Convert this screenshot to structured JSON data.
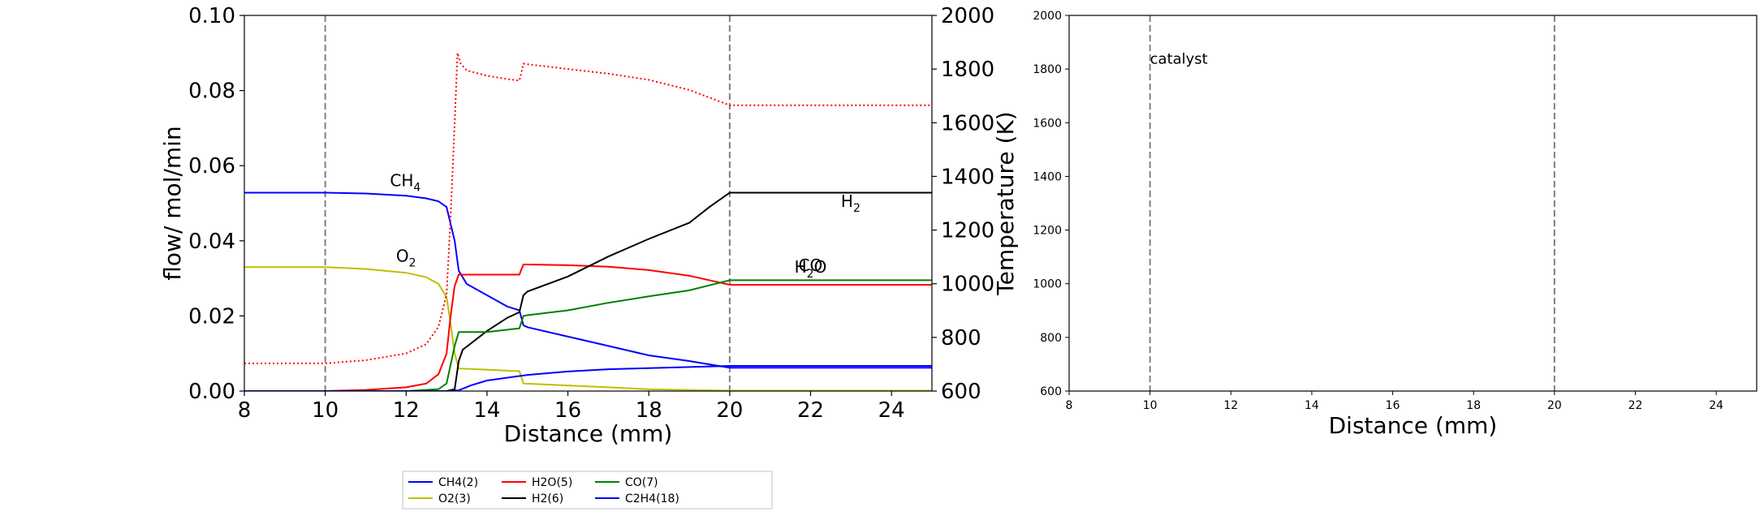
{
  "chart_data": [
    {
      "type": "line",
      "xlabel": "Distance (mm)",
      "ylabel": "flow/ mol/min",
      "y2label": "Temperature (K)",
      "xlim": [
        8,
        25
      ],
      "ylim": [
        0,
        0.1
      ],
      "y2lim": [
        600,
        2000
      ],
      "xticks": [
        "8",
        "10",
        "12",
        "14",
        "16",
        "18",
        "20",
        "22",
        "24"
      ],
      "yticks": [
        "0.00",
        "0.02",
        "0.04",
        "0.06",
        "0.08",
        "0.10"
      ],
      "y2ticks": [
        "600",
        "800",
        "1000",
        "1200",
        "1400",
        "1600",
        "1800",
        "2000"
      ],
      "grid": false,
      "legend_position": "bottom-center",
      "vlines": [
        10,
        20
      ],
      "series": [
        {
          "name": "CH4(2)",
          "color": "#0000ff",
          "style": "solid",
          "x": [
            8,
            10,
            11,
            12,
            12.5,
            12.8,
            13.0,
            13.1,
            13.2,
            13.3,
            13.5,
            14,
            14.5,
            14.8,
            14.9,
            15,
            16,
            17,
            18,
            19,
            20,
            25
          ],
          "y": [
            0.0528,
            0.0528,
            0.0526,
            0.052,
            0.0513,
            0.0505,
            0.049,
            0.0445,
            0.04,
            0.032,
            0.0285,
            0.0255,
            0.0225,
            0.0215,
            0.0175,
            0.017,
            0.0145,
            0.012,
            0.0095,
            0.008,
            0.0062,
            0.0062
          ]
        },
        {
          "name": "O2(3)",
          "color": "#bfbf00",
          "style": "solid",
          "x": [
            8,
            10,
            11,
            12,
            12.5,
            12.8,
            13.0,
            13.1,
            13.2,
            13.3,
            14,
            14.8,
            14.9,
            16,
            18,
            20,
            25
          ],
          "y": [
            0.033,
            0.033,
            0.0325,
            0.0315,
            0.0303,
            0.0285,
            0.025,
            0.018,
            0.01,
            0.006,
            0.0057,
            0.0053,
            0.002,
            0.0015,
            0.0005,
            0.0001,
            0.0001
          ]
        },
        {
          "name": "H2O(5)",
          "color": "#ff0000",
          "style": "solid",
          "x": [
            8,
            10,
            11,
            12,
            12.5,
            12.8,
            13.0,
            13.1,
            13.2,
            13.3,
            14,
            14.8,
            14.9,
            15,
            16,
            17,
            18,
            19,
            20,
            25
          ],
          "y": [
            0,
            0,
            0.0003,
            0.001,
            0.002,
            0.0045,
            0.01,
            0.02,
            0.028,
            0.031,
            0.031,
            0.031,
            0.0337,
            0.0337,
            0.0335,
            0.0331,
            0.0322,
            0.0307,
            0.0283,
            0.0283
          ]
        },
        {
          "name": "H2(6)",
          "color": "#000000",
          "style": "solid",
          "x": [
            8,
            12,
            13.0,
            13.2,
            13.3,
            13.4,
            14,
            14.5,
            14.8,
            14.9,
            15,
            16,
            17,
            18,
            19,
            19.5,
            20,
            25
          ],
          "y": [
            0,
            0,
            0,
            0.0005,
            0.008,
            0.011,
            0.016,
            0.0195,
            0.021,
            0.0255,
            0.0265,
            0.0305,
            0.0358,
            0.0405,
            0.0448,
            0.049,
            0.0528,
            0.0528
          ]
        },
        {
          "name": "CO(7)",
          "color": "#008000",
          "style": "solid",
          "x": [
            8,
            12,
            12.8,
            13.0,
            13.1,
            13.2,
            13.3,
            14,
            14.8,
            14.9,
            15,
            16,
            17,
            18,
            19,
            20,
            25
          ],
          "y": [
            0,
            0,
            0.0005,
            0.002,
            0.007,
            0.012,
            0.0157,
            0.0157,
            0.0167,
            0.02,
            0.0202,
            0.0215,
            0.0235,
            0.0252,
            0.0268,
            0.0295,
            0.0295
          ]
        },
        {
          "name": "C2H4(18)",
          "color": "#0000ff",
          "style": "solid",
          "x": [
            8,
            13.0,
            13.3,
            13.6,
            14,
            14.8,
            15,
            16,
            17,
            18,
            19,
            20,
            25
          ],
          "y": [
            0,
            0,
            0.0002,
            0.0015,
            0.0028,
            0.004,
            0.0043,
            0.0052,
            0.0058,
            0.0061,
            0.0064,
            0.0067,
            0.0067
          ]
        },
        {
          "name": "",
          "axis": "y2",
          "color": "#ff0000",
          "style": "dotted",
          "x": [
            8,
            10,
            11,
            12,
            12.5,
            12.8,
            13.0,
            13.1,
            13.2,
            13.27,
            13.35,
            13.5,
            14,
            14.5,
            14.8,
            14.9,
            15,
            16,
            17,
            18,
            19,
            20,
            25
          ],
          "y": [
            703,
            703,
            715,
            740,
            775,
            840,
            960,
            1250,
            1600,
            1860,
            1820,
            1795,
            1775,
            1763,
            1757,
            1820,
            1818,
            1800,
            1783,
            1760,
            1722,
            1665,
            1665
          ]
        }
      ],
      "annotations": [
        {
          "base": "CH",
          "sub": "4",
          "x": 11.6,
          "y": 0.0545,
          "color": "#0000ff"
        },
        {
          "base": "O",
          "sub": "2",
          "x": 11.75,
          "y": 0.0345,
          "color": "#bfbf00"
        },
        {
          "base": "H",
          "sub": "2",
          "x": 22.75,
          "y": 0.049,
          "color": "#000000"
        },
        {
          "base": "CO",
          "sub": "",
          "x": 21.7,
          "y": 0.032,
          "color": "#008000"
        },
        {
          "base": "H",
          "sub": "2",
          "tail": "O",
          "x": 21.6,
          "y": 0.0315,
          "color": "#ff0000"
        }
      ]
    },
    {
      "type": "line",
      "xlabel": "Distance (mm)",
      "xlim": [
        8,
        25
      ],
      "ylim": [
        600,
        2000
      ],
      "xticks": [
        "8",
        "10",
        "12",
        "14",
        "16",
        "18",
        "20",
        "22",
        "24"
      ],
      "yticks": [
        "600",
        "800",
        "1000",
        "1200",
        "1400",
        "1600",
        "1800",
        "2000"
      ],
      "grid": false,
      "vlines": [
        10,
        20
      ],
      "annotations": [
        {
          "text": "catalyst",
          "x": 10,
          "y": 1820
        }
      ],
      "series": []
    }
  ]
}
